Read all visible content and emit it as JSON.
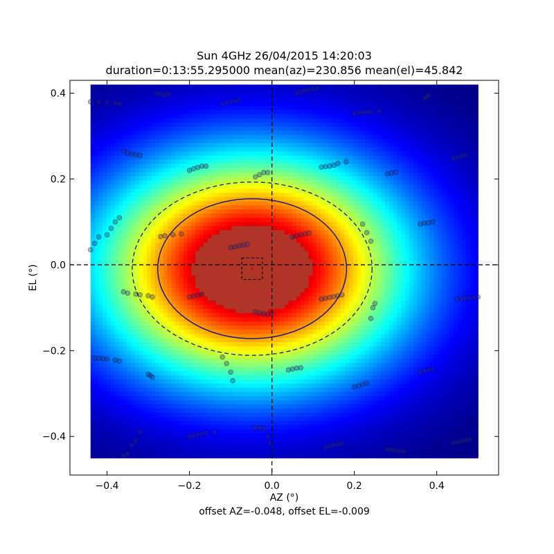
{
  "chart_data": {
    "type": "heatmap",
    "title": "Sun 4GHz 26/04/2015 14:20:03",
    "subtitle": "duration=0:13:55.295000 mean(az)=230.856 mean(el)=45.842",
    "xlabel": "AZ (°)",
    "ylabel": "EL (°)",
    "xlim": [
      -0.49,
      0.55
    ],
    "ylim": [
      -0.49,
      0.43
    ],
    "xticks": [
      -0.4,
      -0.2,
      0.0,
      0.2,
      0.4
    ],
    "yticks": [
      -0.4,
      -0.2,
      0.0,
      0.2,
      0.4
    ],
    "xtick_labels": [
      "−0.4",
      "−0.2",
      "0.0",
      "0.2",
      "0.4"
    ],
    "ytick_labels": [
      "−0.4",
      "−0.2",
      "0.0",
      "0.2",
      "0.4"
    ],
    "heatmap_extent": {
      "x": [
        -0.44,
        0.5
      ],
      "y": [
        -0.45,
        0.42
      ]
    },
    "colormap": "jet",
    "beam_center": {
      "x": -0.048,
      "y": -0.009
    },
    "fwhm_ellipse": {
      "cx": -0.048,
      "cy": -0.009,
      "rx": 0.229,
      "ry": 0.163,
      "style": "solid"
    },
    "outer_ellipse": {
      "cx": -0.048,
      "cy": -0.009,
      "rx": 0.291,
      "ry": 0.202,
      "style": "dashed"
    },
    "center_box": {
      "x": [
        -0.073,
        -0.023
      ],
      "y": [
        -0.034,
        0.016
      ]
    },
    "crosshair": {
      "x": 0.0,
      "y": 0.0,
      "style": "dashed"
    },
    "scan_tracks": [
      [
        -0.44,
        0.38,
        -0.42,
        0.38,
        -0.4,
        0.378,
        -0.38,
        0.377,
        -0.37,
        0.375
      ],
      [
        -0.28,
        0.4,
        -0.27,
        0.398,
        -0.26,
        0.395,
        -0.25,
        0.398
      ],
      [
        -0.12,
        0.375,
        -0.11,
        0.378,
        -0.1,
        0.38,
        -0.09,
        0.382,
        -0.08,
        0.384
      ],
      [
        0.06,
        0.4,
        0.07,
        0.403,
        0.08,
        0.406,
        0.09,
        0.408,
        0.1,
        0.41,
        0.11,
        0.412
      ],
      [
        0.2,
        0.353,
        0.21,
        0.354,
        0.22,
        0.355,
        0.23,
        0.356,
        0.24,
        0.357,
        0.26,
        0.358
      ],
      [
        0.37,
        0.388,
        0.375,
        0.391,
        0.38,
        0.395
      ],
      [
        -0.36,
        0.265,
        -0.35,
        0.26,
        -0.34,
        0.258,
        -0.33,
        0.257,
        -0.32,
        0.255
      ],
      [
        -0.2,
        0.22,
        -0.19,
        0.224,
        -0.18,
        0.227,
        -0.17,
        0.23,
        -0.16,
        0.23
      ],
      [
        -0.04,
        0.205,
        -0.03,
        0.21,
        -0.02,
        0.215,
        -0.01,
        0.215
      ],
      [
        0.12,
        0.228,
        0.13,
        0.229,
        0.14,
        0.23,
        0.15,
        0.232,
        0.16,
        0.236,
        0.18,
        0.24
      ],
      [
        0.28,
        0.212,
        0.29,
        0.214,
        0.3,
        0.216
      ],
      [
        0.44,
        0.248,
        0.45,
        0.25,
        0.46,
        0.253,
        0.47,
        0.256
      ],
      [
        -0.44,
        0.035,
        -0.43,
        0.05,
        -0.42,
        0.065,
        -0.4,
        0.07,
        -0.39,
        0.085,
        -0.38,
        0.1,
        -0.37,
        0.11
      ],
      [
        -0.27,
        0.066,
        -0.26,
        0.068,
        -0.24,
        0.07,
        -0.22,
        0.072
      ],
      [
        -0.1,
        0.04,
        -0.09,
        0.042,
        -0.08,
        0.044,
        -0.07,
        0.046,
        -0.06,
        0.048
      ],
      [
        0.05,
        0.065,
        0.06,
        0.068,
        0.07,
        0.07,
        0.08,
        0.072,
        0.09,
        0.074
      ],
      [
        0.22,
        0.095,
        0.23,
        0.075,
        0.24,
        0.055
      ],
      [
        0.36,
        0.095,
        0.37,
        0.097,
        0.38,
        0.098,
        0.39,
        0.1
      ],
      [
        -0.36,
        -0.063,
        -0.35,
        -0.066,
        -0.33,
        -0.068,
        -0.32,
        -0.07,
        -0.3,
        -0.072,
        -0.29,
        -0.075
      ],
      [
        -0.2,
        -0.075,
        -0.19,
        -0.073,
        -0.18,
        -0.071,
        -0.17,
        -0.069
      ],
      [
        -0.04,
        -0.11,
        -0.03,
        -0.112,
        -0.02,
        -0.114,
        -0.01,
        -0.115,
        0.0,
        -0.113
      ],
      [
        0.12,
        -0.08,
        0.13,
        -0.078,
        0.14,
        -0.076,
        0.15,
        -0.074,
        0.16,
        -0.072,
        0.17,
        -0.07
      ],
      [
        0.24,
        -0.125,
        0.245,
        -0.1,
        0.25,
        -0.09
      ],
      [
        0.45,
        -0.08,
        0.46,
        -0.079,
        0.47,
        -0.078,
        0.48,
        -0.077,
        0.49,
        -0.076,
        0.5,
        -0.075
      ],
      [
        -0.43,
        -0.218,
        -0.42,
        -0.218,
        -0.41,
        -0.219,
        -0.4,
        -0.22,
        -0.38,
        -0.222,
        -0.37,
        -0.224
      ],
      [
        -0.3,
        -0.255,
        -0.295,
        -0.258,
        -0.29,
        -0.262
      ],
      [
        -0.12,
        -0.215,
        -0.11,
        -0.23,
        -0.1,
        -0.25,
        -0.095,
        -0.27
      ],
      [
        0.04,
        -0.245,
        0.05,
        -0.243,
        0.06,
        -0.241,
        0.07,
        -0.24
      ],
      [
        0.2,
        -0.285,
        0.21,
        -0.282,
        0.22,
        -0.279,
        0.23,
        -0.276
      ],
      [
        0.36,
        -0.25,
        0.37,
        -0.248,
        0.38,
        -0.245,
        0.39,
        -0.243
      ],
      [
        -0.36,
        -0.445,
        -0.35,
        -0.44,
        -0.34,
        -0.42,
        -0.33,
        -0.41,
        -0.32,
        -0.39
      ],
      [
        -0.2,
        -0.4,
        -0.19,
        -0.398,
        -0.18,
        -0.396,
        -0.17,
        -0.394,
        -0.16,
        -0.392,
        -0.14,
        -0.39
      ],
      [
        -0.04,
        -0.38,
        -0.03,
        -0.38,
        -0.02,
        -0.382,
        -0.01,
        -0.4,
        -0.005,
        -0.415
      ],
      [
        0.13,
        -0.425,
        0.14,
        -0.423,
        0.15,
        -0.42,
        0.16,
        -0.418,
        0.17,
        -0.416
      ],
      [
        0.28,
        -0.43,
        0.29,
        -0.432,
        0.3,
        -0.433,
        0.31,
        -0.434,
        0.32,
        -0.435
      ],
      [
        0.44,
        -0.415,
        0.45,
        -0.413,
        0.46,
        -0.411,
        0.47,
        -0.409,
        0.48,
        -0.407
      ]
    ]
  },
  "annotation": "offset AZ=-0.048, offset EL=-0.009"
}
